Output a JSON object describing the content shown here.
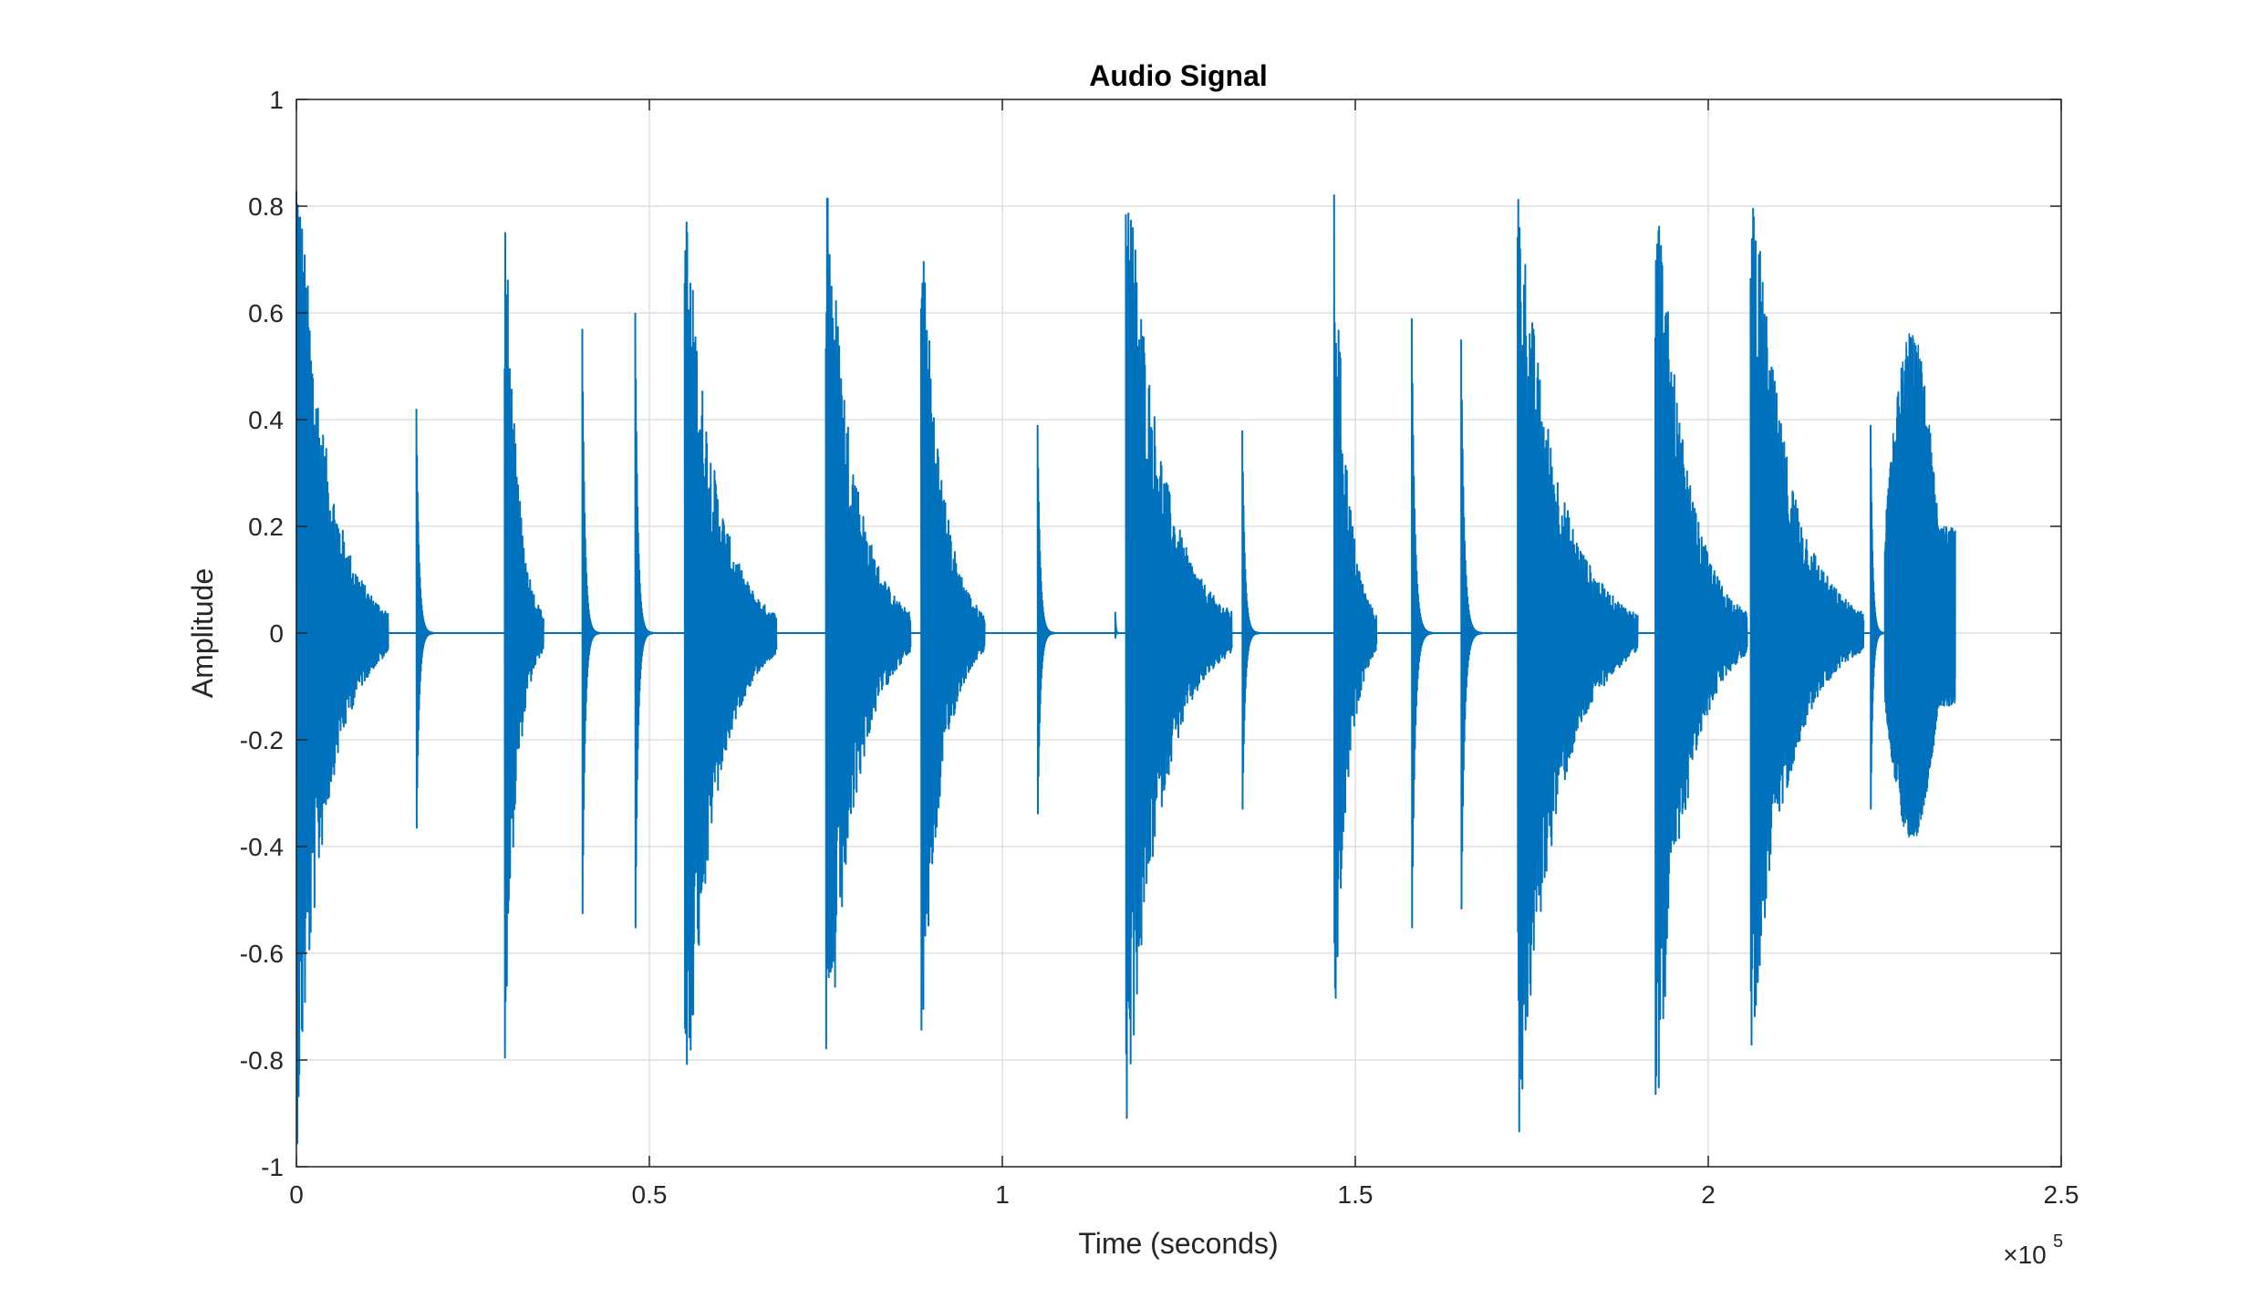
{
  "chart_data": {
    "type": "line",
    "title": "Audio Signal",
    "xlabel": "Time (seconds)",
    "ylabel": "Amplitude",
    "xlim": [
      0,
      250000
    ],
    "ylim": [
      -1,
      1
    ],
    "grid": true,
    "legend": "none",
    "x_exponent_label": "×10",
    "x_exponent_power": "5",
    "x_ticks": [
      0,
      50000,
      100000,
      150000,
      200000,
      250000
    ],
    "x_tick_labels": [
      "0",
      "0.5",
      "1",
      "1.5",
      "2",
      "2.5"
    ],
    "y_ticks": [
      1,
      0.8,
      0.6,
      0.4,
      0.2,
      0,
      -0.2,
      -0.4,
      -0.6,
      -0.8,
      -1
    ],
    "y_tick_labels": [
      "1",
      "0.8",
      "0.6",
      "0.4",
      "0.2",
      "0",
      "-0.2",
      "-0.4",
      "-0.6",
      "-0.8",
      "-1"
    ],
    "series": [
      {
        "color": "#0072BD",
        "sample_count": 235000,
        "events": [
          {
            "t": 0,
            "peak_pos": 0.98,
            "peak_neg": -0.99,
            "dur": 13000,
            "type": "burst"
          },
          {
            "t": 17000,
            "peak_pos": 0.42,
            "peak_neg": -0.41,
            "dur": 2500,
            "type": "click"
          },
          {
            "t": 29500,
            "peak_pos": 0.87,
            "peak_neg": -0.82,
            "dur": 5500,
            "type": "burst"
          },
          {
            "t": 40500,
            "peak_pos": 0.57,
            "peak_neg": -0.59,
            "dur": 2500,
            "type": "click"
          },
          {
            "t": 48000,
            "peak_pos": 0.6,
            "peak_neg": -0.62,
            "dur": 2500,
            "type": "click"
          },
          {
            "t": 55000,
            "peak_pos": 0.87,
            "peak_neg": -0.98,
            "dur": 13000,
            "type": "burst"
          },
          {
            "t": 75000,
            "peak_pos": 0.94,
            "peak_neg": -0.99,
            "dur": 12000,
            "type": "burst"
          },
          {
            "t": 88500,
            "peak_pos": 0.85,
            "peak_neg": -0.82,
            "dur": 9000,
            "type": "burst"
          },
          {
            "t": 105000,
            "peak_pos": 0.39,
            "peak_neg": -0.38,
            "dur": 2500,
            "type": "click"
          },
          {
            "t": 116000,
            "peak_pos": 0.04,
            "peak_neg": -0.01,
            "dur": 600,
            "type": "click"
          },
          {
            "t": 117500,
            "peak_pos": 0.99,
            "peak_neg": -0.97,
            "dur": 15000,
            "type": "burst"
          },
          {
            "t": 134000,
            "peak_pos": 0.38,
            "peak_neg": -0.37,
            "dur": 2500,
            "type": "click"
          },
          {
            "t": 147000,
            "peak_pos": 0.84,
            "peak_neg": -0.84,
            "dur": 6000,
            "type": "burst"
          },
          {
            "t": 158000,
            "peak_pos": 0.59,
            "peak_neg": -0.62,
            "dur": 3000,
            "type": "click"
          },
          {
            "t": 165000,
            "peak_pos": 0.55,
            "peak_neg": -0.58,
            "dur": 3000,
            "type": "click"
          },
          {
            "t": 173000,
            "peak_pos": 0.88,
            "peak_neg": -0.99,
            "dur": 17000,
            "type": "burst"
          },
          {
            "t": 192500,
            "peak_pos": 0.94,
            "peak_neg": -0.97,
            "dur": 13000,
            "type": "burst"
          },
          {
            "t": 206000,
            "peak_pos": 0.94,
            "peak_neg": -0.82,
            "dur": 16000,
            "type": "burst"
          },
          {
            "t": 223000,
            "peak_pos": 0.39,
            "peak_neg": -0.37,
            "dur": 2000,
            "type": "click"
          },
          {
            "t": 225000,
            "peak_pos": 0.57,
            "peak_neg": -0.39,
            "dur": 10000,
            "type": "tone"
          }
        ]
      }
    ]
  }
}
